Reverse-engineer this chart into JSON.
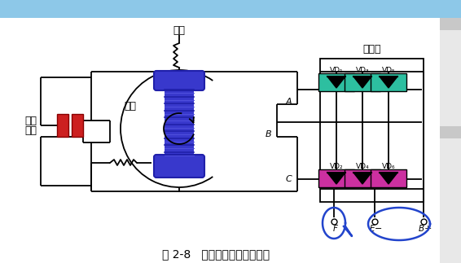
{
  "title": "图 2-8   交流发电机工作原理图",
  "bg_top": "#8DC8E8",
  "bg_main": "#FFFFFF",
  "stator_label": "定子",
  "rotor_label": "转子",
  "rectifier_label": "整流器",
  "brush_label_1": "滑环",
  "brush_label_2": "电刷",
  "vd_top": [
    "VD₁",
    "VD₃",
    "VD₅"
  ],
  "vd_bot": [
    "VD₂",
    "VD₄",
    "VD₆"
  ],
  "phase_labels": [
    "A",
    "B",
    "C"
  ],
  "teal_color": "#2DBFA0",
  "pink_color": "#CC30A0",
  "red_color": "#CC2020",
  "rotor_color": "#3838CC",
  "rotor_dark": "#2020AA",
  "line_color": "#000000",
  "title_fontsize": 10,
  "label_fontsize": 9
}
